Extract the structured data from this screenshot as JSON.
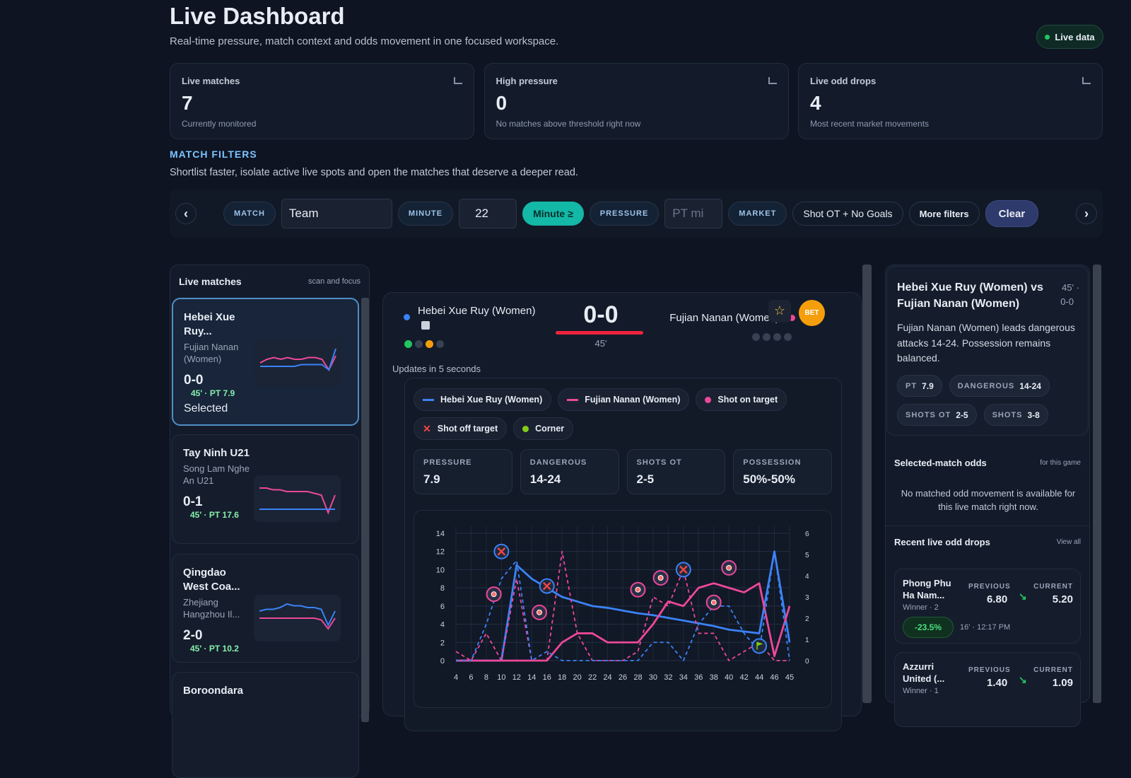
{
  "header": {
    "title": "Live Dashboard",
    "subtitle": "Real-time pressure, match context and odds movement in one focused workspace.",
    "badge": "Live data"
  },
  "stats": [
    {
      "label": "Live matches",
      "value": 7,
      "note": "Currently monitored"
    },
    {
      "label": "High pressure",
      "value": 0,
      "note": "No matches above threshold right now"
    },
    {
      "label": "Live odd drops",
      "value": 4,
      "note": "Most recent market movements"
    }
  ],
  "filters": {
    "heading": "MATCH FILTERS",
    "description": "Shortlist faster, isolate active live spots and open the matches that deserve a deeper read.",
    "match_label": "MATCH",
    "match_input": "Team",
    "minute_label": "MINUTE",
    "minute_input": "22",
    "minute_toggle": "Minute ≥",
    "pressure_label": "PRESSURE",
    "pressure_input": "PT mi",
    "market_label": "MARKET",
    "market_value": "Shot OT + No Goals",
    "more": "More filters",
    "clear": "Clear"
  },
  "match_list": {
    "title": "Live matches",
    "hint": "scan and focus",
    "spark_ylim": [
      0,
      10
    ],
    "matches": [
      {
        "home": "Hebei Xue Ruy...",
        "away": "Fujian Nanan (Women)",
        "score": "0-0",
        "meta": "45' · PT 7.9",
        "status": "Selected",
        "home_spark": [
          4,
          4,
          4,
          4,
          4,
          4,
          4.5,
          4.5,
          4.5,
          4.5,
          3,
          9
        ],
        "away_spark": [
          5,
          6,
          6.5,
          6,
          6.5,
          6,
          6,
          6.5,
          6.5,
          6,
          3,
          7
        ]
      },
      {
        "home": "Tay Ninh U21",
        "away": "Song Lam Nghe An U21",
        "score": "0-1",
        "meta": "45' · PT 17.6",
        "home_spark": [
          2,
          2,
          2,
          2,
          2,
          2,
          2,
          2,
          2,
          2,
          2,
          2
        ],
        "away_spark": [
          8,
          8,
          7.5,
          7.5,
          7,
          7,
          7,
          7,
          6.5,
          6,
          1,
          6
        ]
      },
      {
        "home": "Qingdao West Coa...",
        "away": "Zhejiang Hangzhou Il...",
        "score": "2-0",
        "meta": "45' · PT 10.2",
        "home_spark": [
          7,
          7.5,
          7.5,
          8,
          9,
          8.5,
          8.5,
          8,
          8,
          7.5,
          3,
          7
        ],
        "away_spark": [
          5,
          5,
          5,
          5,
          5,
          5,
          5,
          5,
          5,
          4.5,
          2,
          5
        ]
      },
      {
        "home": "Boroondara"
      }
    ]
  },
  "match": {
    "home": "Hebei Xue Ruy (Women)",
    "away": "Fujian Nanan (Women)",
    "score": "0-0",
    "minute": "45'",
    "bet": "BET",
    "update": "Updates in 5 seconds",
    "legend": [
      "Hebei Xue Ruy (Women)",
      "Fujian Nanan (Women)",
      "Shot on target",
      "Shot off target",
      "Corner"
    ],
    "metrics": [
      {
        "label": "PRESSURE",
        "value": "7.9"
      },
      {
        "label": "DANGEROUS",
        "value": "14-24"
      },
      {
        "label": "SHOTS OT",
        "value": "2-5"
      },
      {
        "label": "POSSESSION",
        "value": "50%-50%"
      }
    ]
  },
  "chart_data": {
    "type": "line",
    "categories": [
      4,
      6,
      8,
      10,
      12,
      14,
      16,
      18,
      20,
      22,
      24,
      26,
      28,
      30,
      32,
      34,
      36,
      38,
      40,
      42,
      44,
      46,
      45
    ],
    "ylim": [
      0,
      14
    ],
    "yticks": [
      0,
      2,
      4,
      6,
      8,
      10,
      12,
      14
    ],
    "y2lim": [
      0,
      6
    ],
    "y2ticks": [
      0,
      1,
      2,
      3,
      4,
      5,
      6
    ],
    "grid": true,
    "series": [
      {
        "name": "Hebei Xue Ruy (Women)",
        "color": "#3b82f6",
        "values": [
          0,
          0,
          0,
          0,
          10.5,
          9,
          8,
          7,
          6.5,
          6,
          5.8,
          5.5,
          5.2,
          5,
          4.7,
          4.4,
          4.1,
          3.8,
          3.4,
          3.2,
          3,
          12,
          2
        ]
      },
      {
        "name": "Fujian Nanan (Women)",
        "color": "#ec4899",
        "values": [
          0,
          0,
          0,
          0,
          0,
          0,
          0,
          2,
          3,
          3,
          2,
          2,
          2,
          4,
          6.5,
          6,
          8,
          8.5,
          8,
          7.5,
          8.5,
          0.5,
          6
        ]
      },
      {
        "color": "#ec4899",
        "dashed": true,
        "values": [
          1,
          0,
          3,
          0,
          9,
          0,
          0,
          12,
          3,
          0,
          0,
          0,
          1,
          7,
          6,
          10,
          3,
          3,
          0,
          1,
          2,
          0,
          0
        ]
      },
      {
        "color": "#3b82f6",
        "dashed": true,
        "values": [
          0,
          0,
          4,
          9,
          11,
          0,
          1,
          0,
          0,
          0,
          0,
          0,
          0,
          2,
          2,
          0,
          4,
          6,
          6,
          3,
          1,
          12,
          0
        ]
      }
    ],
    "events": [
      {
        "type": "shot_off",
        "minute": 10,
        "value": 12
      },
      {
        "type": "shot_off",
        "minute": 16,
        "value": 8.2
      },
      {
        "type": "shot_off",
        "minute": 34,
        "value": 10
      },
      {
        "type": "shot_on",
        "minute": 9,
        "value": 7.3
      },
      {
        "type": "shot_on",
        "minute": 15,
        "value": 5.3
      },
      {
        "type": "shot_on",
        "minute": 28,
        "value": 7.8
      },
      {
        "type": "shot_on",
        "minute": 31,
        "value": 9.1
      },
      {
        "type": "shot_on",
        "minute": 38,
        "value": 6.4
      },
      {
        "type": "shot_on",
        "minute": 40,
        "value": 10.2
      },
      {
        "type": "corner",
        "minute": 44,
        "value": 1.6
      }
    ]
  },
  "detail": {
    "title": "Hebei Xue Ruy (Women) vs Fujian Nanan (Women)",
    "minute": "45' ·",
    "score": "0-0",
    "summary": "Fujian Nanan (Women) leads dangerous attacks 14-24. Possession remains balanced.",
    "chips": [
      {
        "label": "PT",
        "value": "7.9"
      },
      {
        "label": "DANGEROUS",
        "value": "14-24"
      },
      {
        "label": "SHOTS OT",
        "value": "2-5"
      },
      {
        "label": "SHOTS",
        "value": "3-8"
      }
    ],
    "odds_title": "Selected-match odds",
    "odds_hint": "for this game",
    "odds_empty": "No matched odd movement is available for this live match right now.",
    "drops_title": "Recent live odd drops",
    "drops_hint": "View all",
    "previous_label": "PREVIOUS",
    "current_label": "CURRENT",
    "drops": [
      {
        "team": "Phong Phu Ha Nam...",
        "market": "Winner · 2",
        "previous": "6.80",
        "current": "5.20",
        "change": "-23.5%",
        "time": "16' · 12:17 PM"
      },
      {
        "team": "Azzurri United (...",
        "market": "Winner · 1",
        "previous": "1.40",
        "current": "1.09"
      }
    ]
  }
}
